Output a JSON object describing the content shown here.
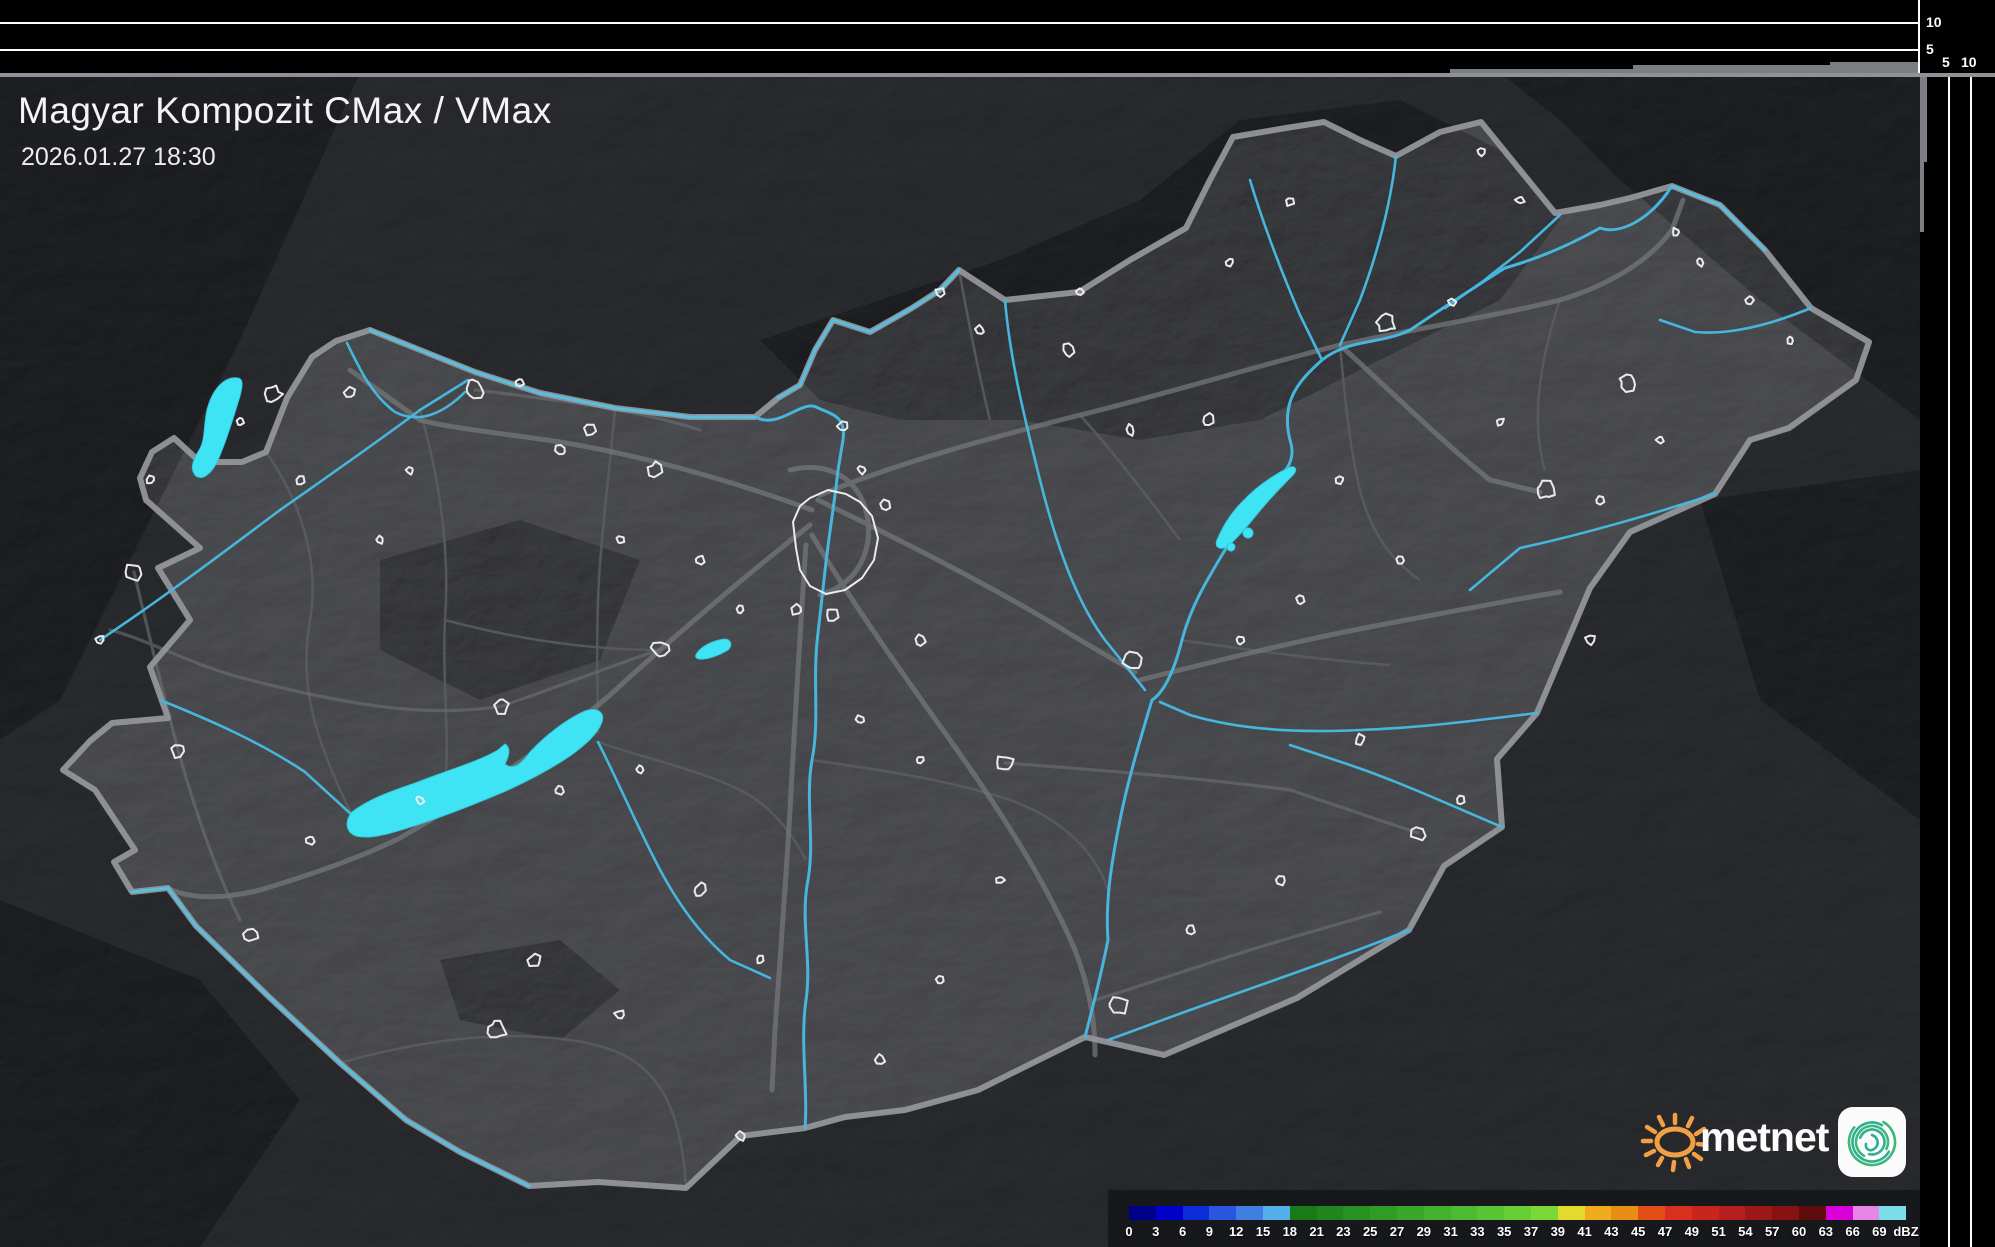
{
  "header": {
    "title": "Magyar Kompozit CMax / VMax",
    "timestamp": "2026.01.27 18:30"
  },
  "top_profile_axis": {
    "labels": [
      "10",
      "5"
    ]
  },
  "right_profile_axis": {
    "labels": [
      "5",
      "10"
    ]
  },
  "legend": {
    "unit": "dBZ",
    "tick_labels": [
      "0",
      "3",
      "6",
      "9",
      "12",
      "15",
      "18",
      "21",
      "23",
      "25",
      "27",
      "29",
      "31",
      "33",
      "35",
      "37",
      "39",
      "41",
      "43",
      "45",
      "47",
      "49",
      "51",
      "54",
      "57",
      "60",
      "63",
      "66",
      "69"
    ],
    "segment_colors": [
      "#000089",
      "#0000c8",
      "#0c2cd8",
      "#2a55de",
      "#3f7ee2",
      "#54b0ea",
      "#1a7a18",
      "#20851c",
      "#279122",
      "#2f9c26",
      "#38a72a",
      "#41b12e",
      "#4cbb31",
      "#59c434",
      "#68ce36",
      "#7cd838",
      "#e3da2e",
      "#f0ac1c",
      "#e88e14",
      "#e04e16",
      "#d8301e",
      "#c8251c",
      "#b41e1e",
      "#9e1818",
      "#881212",
      "#5e0c0c",
      "#da00da",
      "#e686e6",
      "#7cdde8"
    ]
  },
  "branding": {
    "logo_text": "metnet"
  },
  "colors": {
    "water": "#3ee4f4",
    "river": "#46b6dd",
    "country_border": "#92959a",
    "county_border": "#5a5d62",
    "road": "#75787c",
    "town_outline": "#ebebeb",
    "logo_orange": "#f2a044",
    "logo_teal": "#2fae92",
    "logo_green": "#3cb878"
  }
}
